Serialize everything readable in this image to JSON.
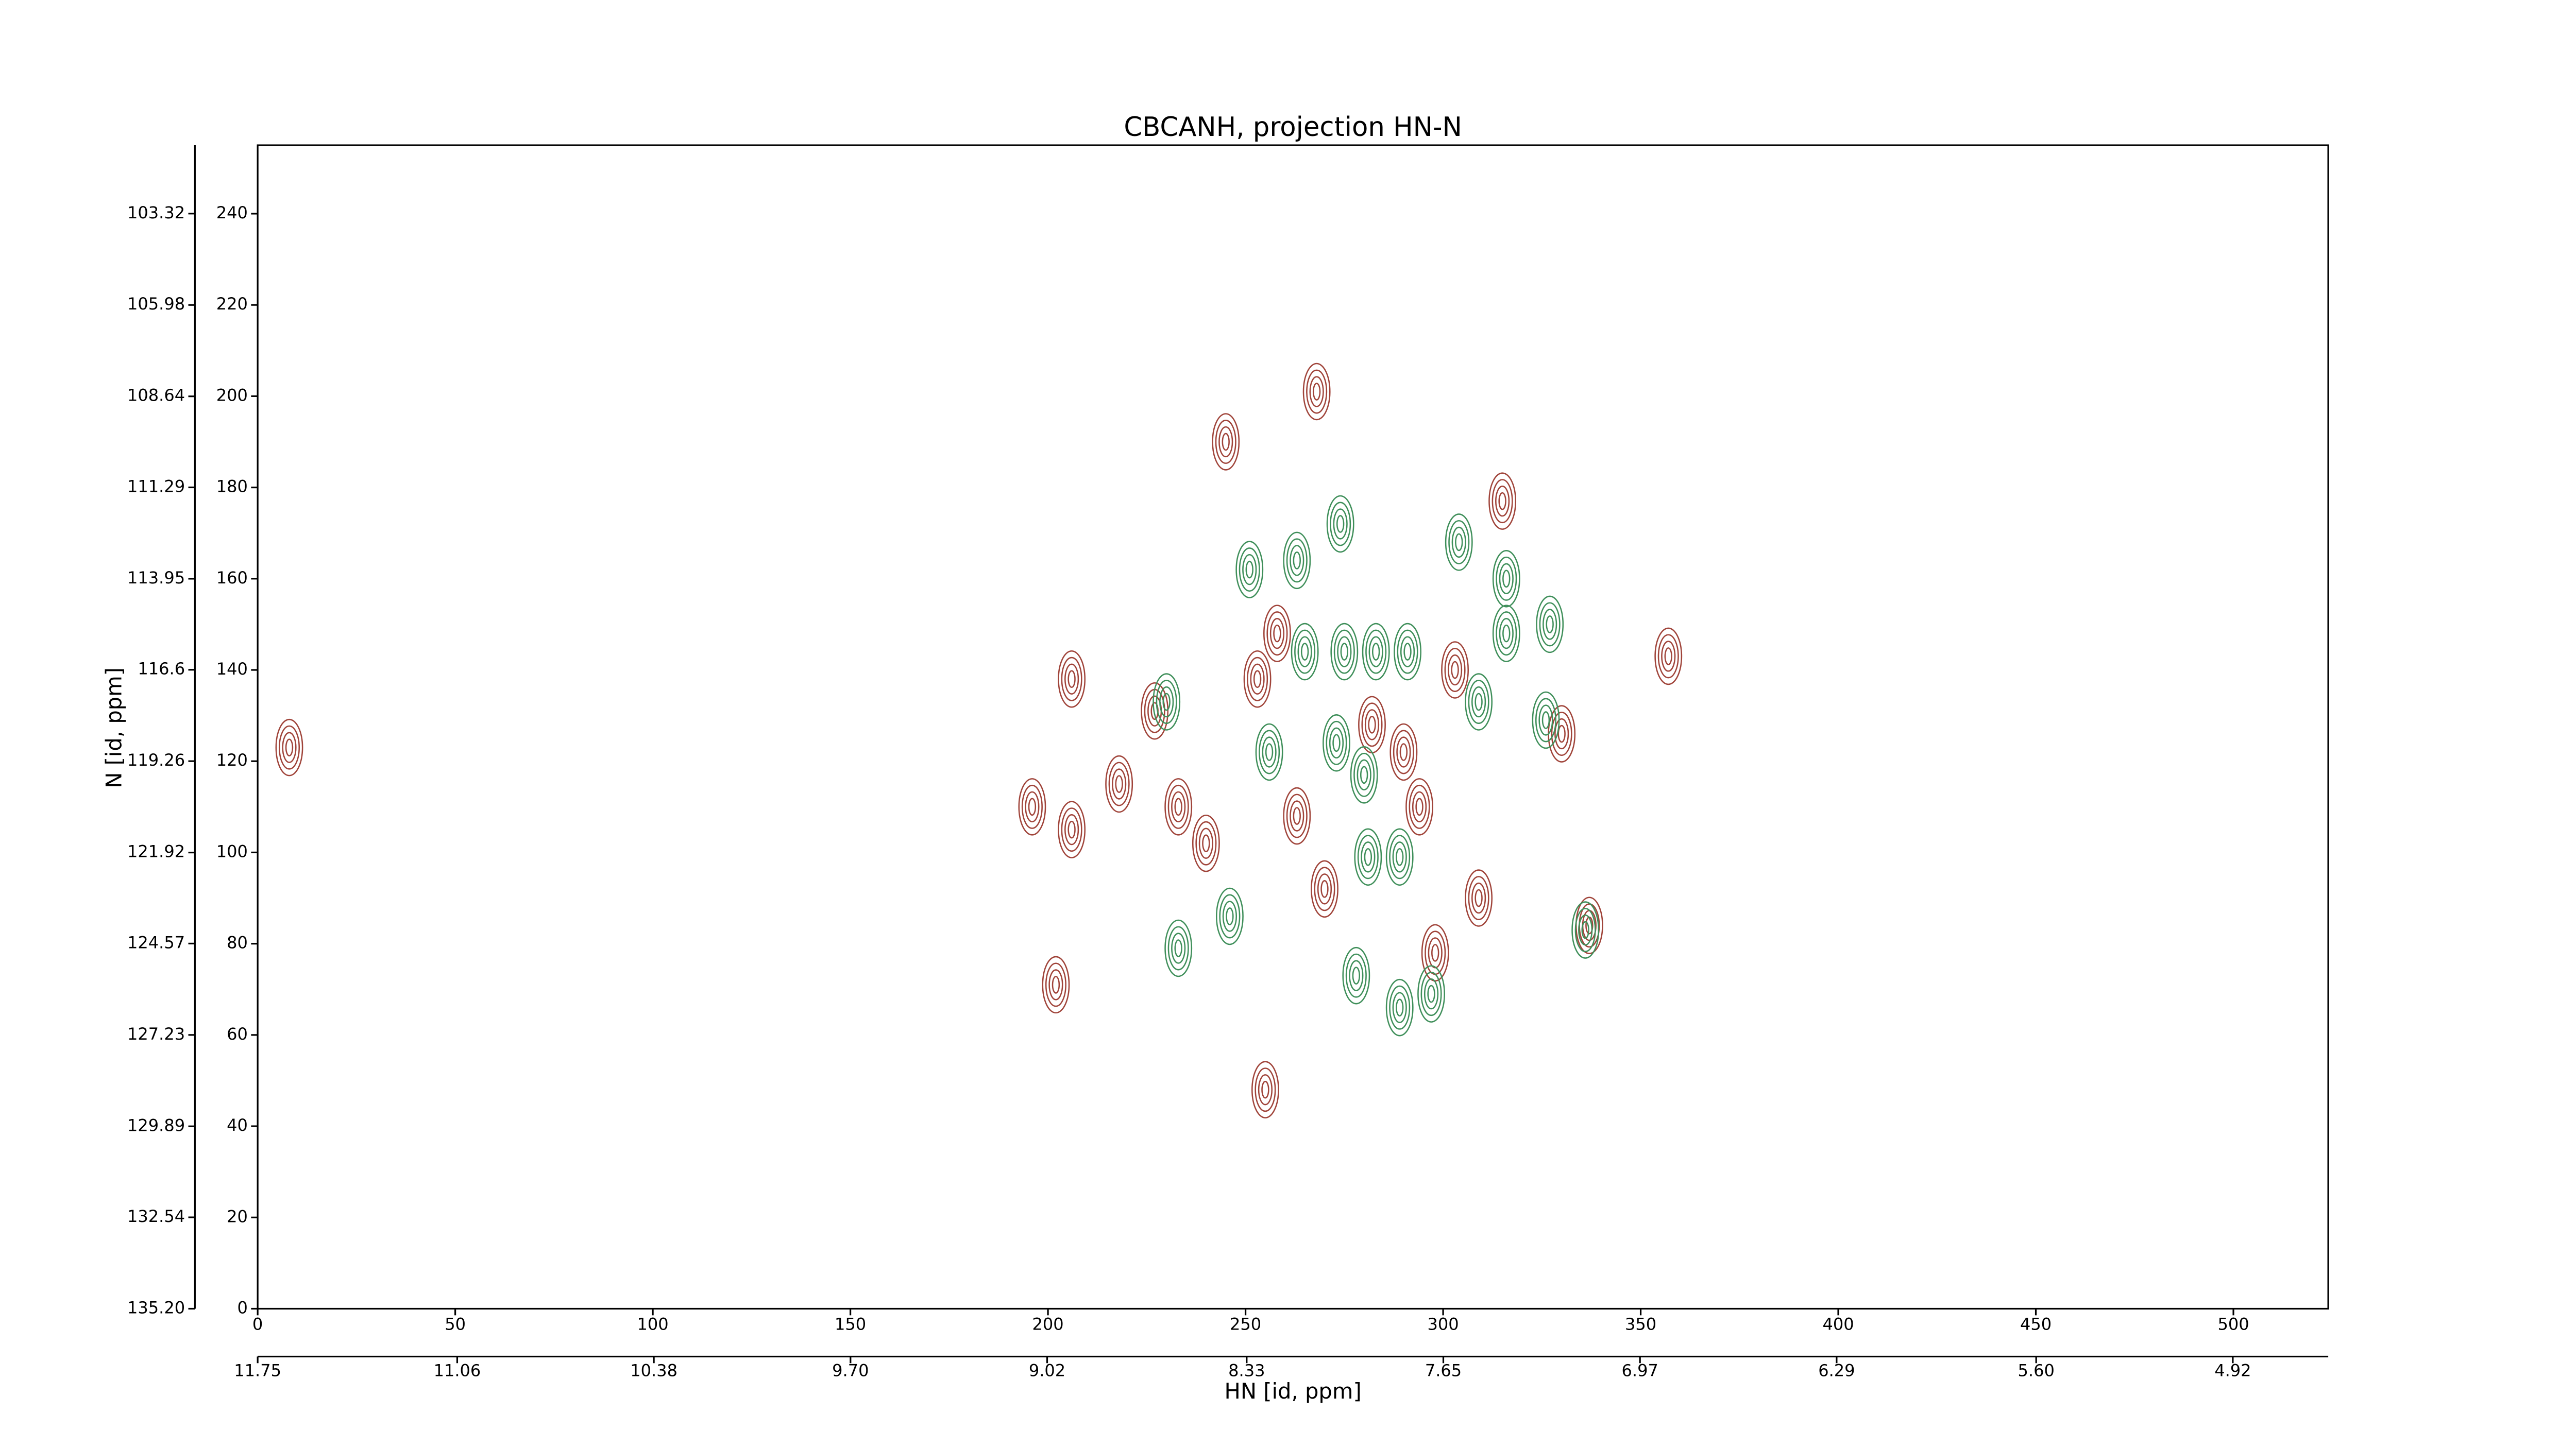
{
  "chart_data": {
    "type": "contour",
    "title": "CBCANH, projection HN-N",
    "xlabel": "HN [id, ppm]",
    "ylabel": "N [id, ppm]",
    "xlim": [
      0,
      524
    ],
    "xticks": [
      0,
      50,
      100,
      150,
      200,
      250,
      300,
      350,
      400,
      450,
      500
    ],
    "x2lim": [
      11.75,
      4.59
    ],
    "x2ticks": [
      11.75,
      11.06,
      10.38,
      {
        "value": 9.7,
        "label": "9.70"
      },
      9.02,
      8.33,
      7.65,
      6.97,
      6.29,
      {
        "value": 5.6,
        "label": "5.60"
      },
      4.92
    ],
    "ylim": [
      0,
      255
    ],
    "yticks": [
      0,
      20,
      40,
      60,
      80,
      100,
      120,
      140,
      160,
      180,
      200,
      220,
      240
    ],
    "y2lim": [
      135.2,
      101.33
    ],
    "y2ticks": [
      {
        "value": 135.2,
        "label": "135.20"
      },
      132.54,
      129.89,
      127.23,
      124.57,
      121.92,
      119.26,
      116.6,
      113.95,
      111.29,
      108.64,
      105.98,
      103.32
    ],
    "series": [
      {
        "color": "#a0443a",
        "x": [
          268,
          245,
          206,
          196,
          206,
          218,
          233,
          240,
          227,
          253,
          258,
          270,
          263,
          290,
          303,
          309,
          202,
          255,
          294,
          330,
          315,
          357,
          337,
          8,
          282,
          298
        ],
        "values": [
          201,
          190,
          138,
          110,
          105,
          115,
          110,
          102,
          131,
          138,
          148,
          92,
          108,
          122,
          140,
          90,
          71,
          48,
          110,
          126,
          177,
          143,
          84,
          123,
          128,
          78
        ]
      },
      {
        "color": "#3f8f5a",
        "x": [
          274,
          263,
          251,
          265,
          275,
          283,
          291,
          316,
          304,
          316,
          309,
          326,
          327,
          256,
          273,
          280,
          289,
          281,
          246,
          233,
          278,
          297,
          289,
          230,
          336
        ],
        "values": [
          172,
          164,
          162,
          144,
          144,
          144,
          144,
          160,
          168,
          148,
          133,
          129,
          150,
          122,
          124,
          117,
          99,
          99,
          86,
          79,
          73,
          69,
          66,
          133,
          83
        ]
      }
    ]
  }
}
